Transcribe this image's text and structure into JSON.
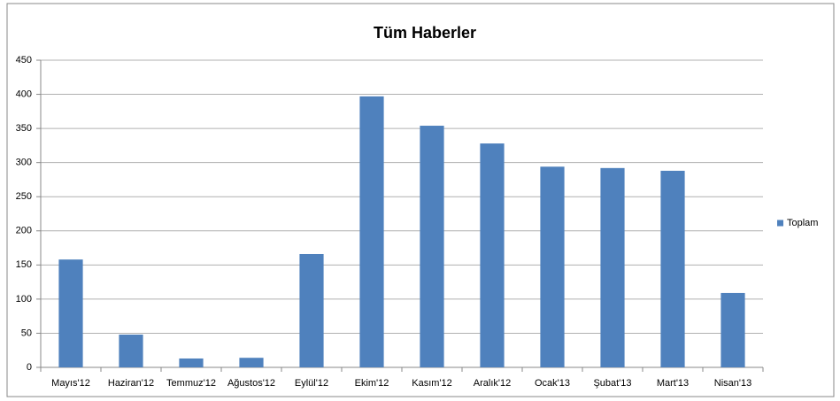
{
  "chart_data": {
    "type": "bar",
    "title": "Tüm Haberler",
    "categories": [
      "Mayıs'12",
      "Haziran'12",
      "Temmuz'12",
      "Ağustos'12",
      "Eylül'12",
      "Ekim'12",
      "Kasım'12",
      "Aralık'12",
      "Ocak'13",
      "Şubat'13",
      "Mart'13",
      "Nisan'13"
    ],
    "series": [
      {
        "name": "Toplam",
        "color": "#4f81bd",
        "values": [
          158,
          48,
          13,
          14,
          166,
          397,
          354,
          328,
          294,
          292,
          288,
          109
        ]
      }
    ],
    "ylim": [
      0,
      450
    ],
    "yticks": [
      0,
      50,
      100,
      150,
      200,
      250,
      300,
      350,
      400,
      450
    ],
    "grid": true,
    "legend": "right"
  }
}
